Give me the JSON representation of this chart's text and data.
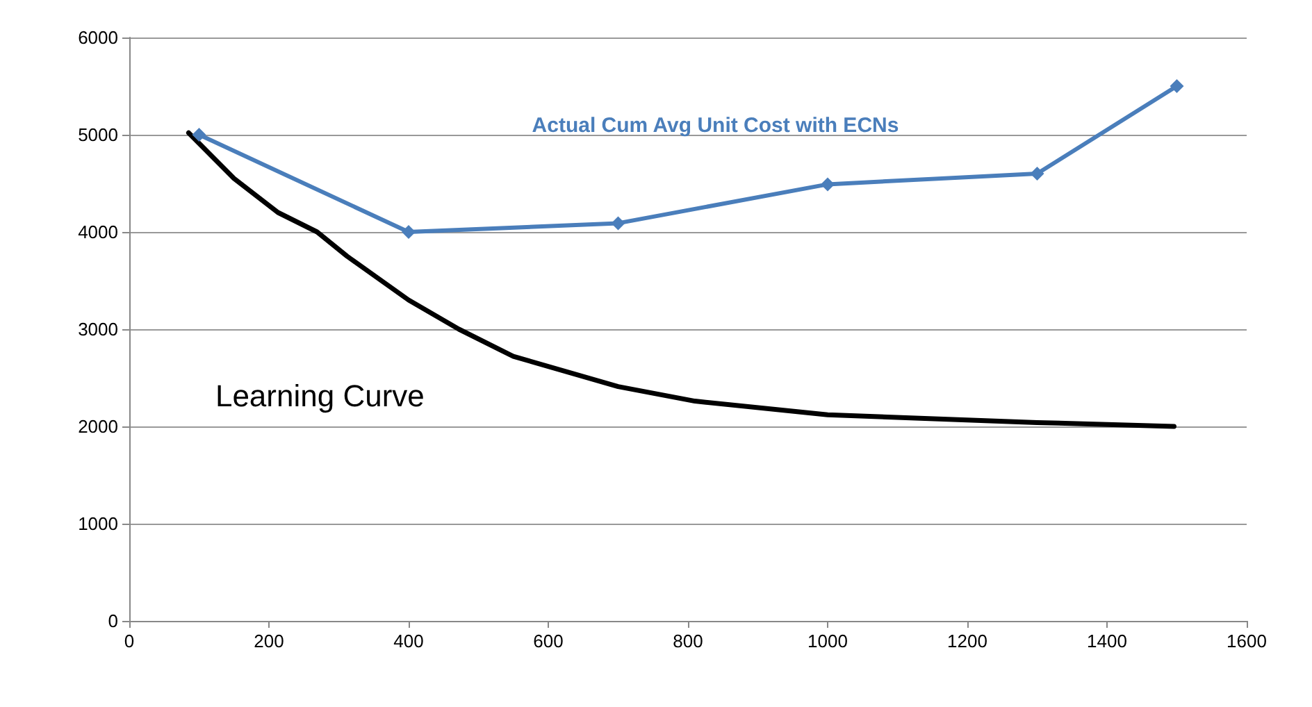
{
  "chart_data": {
    "type": "line",
    "xlim": [
      0,
      1600
    ],
    "xticks": [
      0,
      200,
      400,
      600,
      800,
      1000,
      1200,
      1400,
      1600
    ],
    "ylim": [
      0,
      6000
    ],
    "yticks": [
      0,
      1000,
      2000,
      3000,
      4000,
      5000,
      6000
    ],
    "grid": "y",
    "legend": false,
    "series": [
      {
        "name": "Actual Cum Avg Unit Cost with ECNs",
        "color": "#4a7ebb",
        "marker": "diamond",
        "x": [
          100,
          400,
          700,
          1000,
          1300,
          1500
        ],
        "values": [
          5000,
          4000,
          4090,
          4490,
          4600,
          5500
        ]
      },
      {
        "name": "Learning Curve",
        "color": "#000000",
        "marker": "none",
        "x": [
          85,
          150,
          213,
          269,
          312,
          400,
          472,
          550,
          700,
          810,
          1000,
          1300,
          1496
        ],
        "values": [
          5020,
          4550,
          4200,
          4000,
          3750,
          3300,
          3000,
          2720,
          2410,
          2260,
          2120,
          2040,
          2000
        ]
      }
    ]
  }
}
